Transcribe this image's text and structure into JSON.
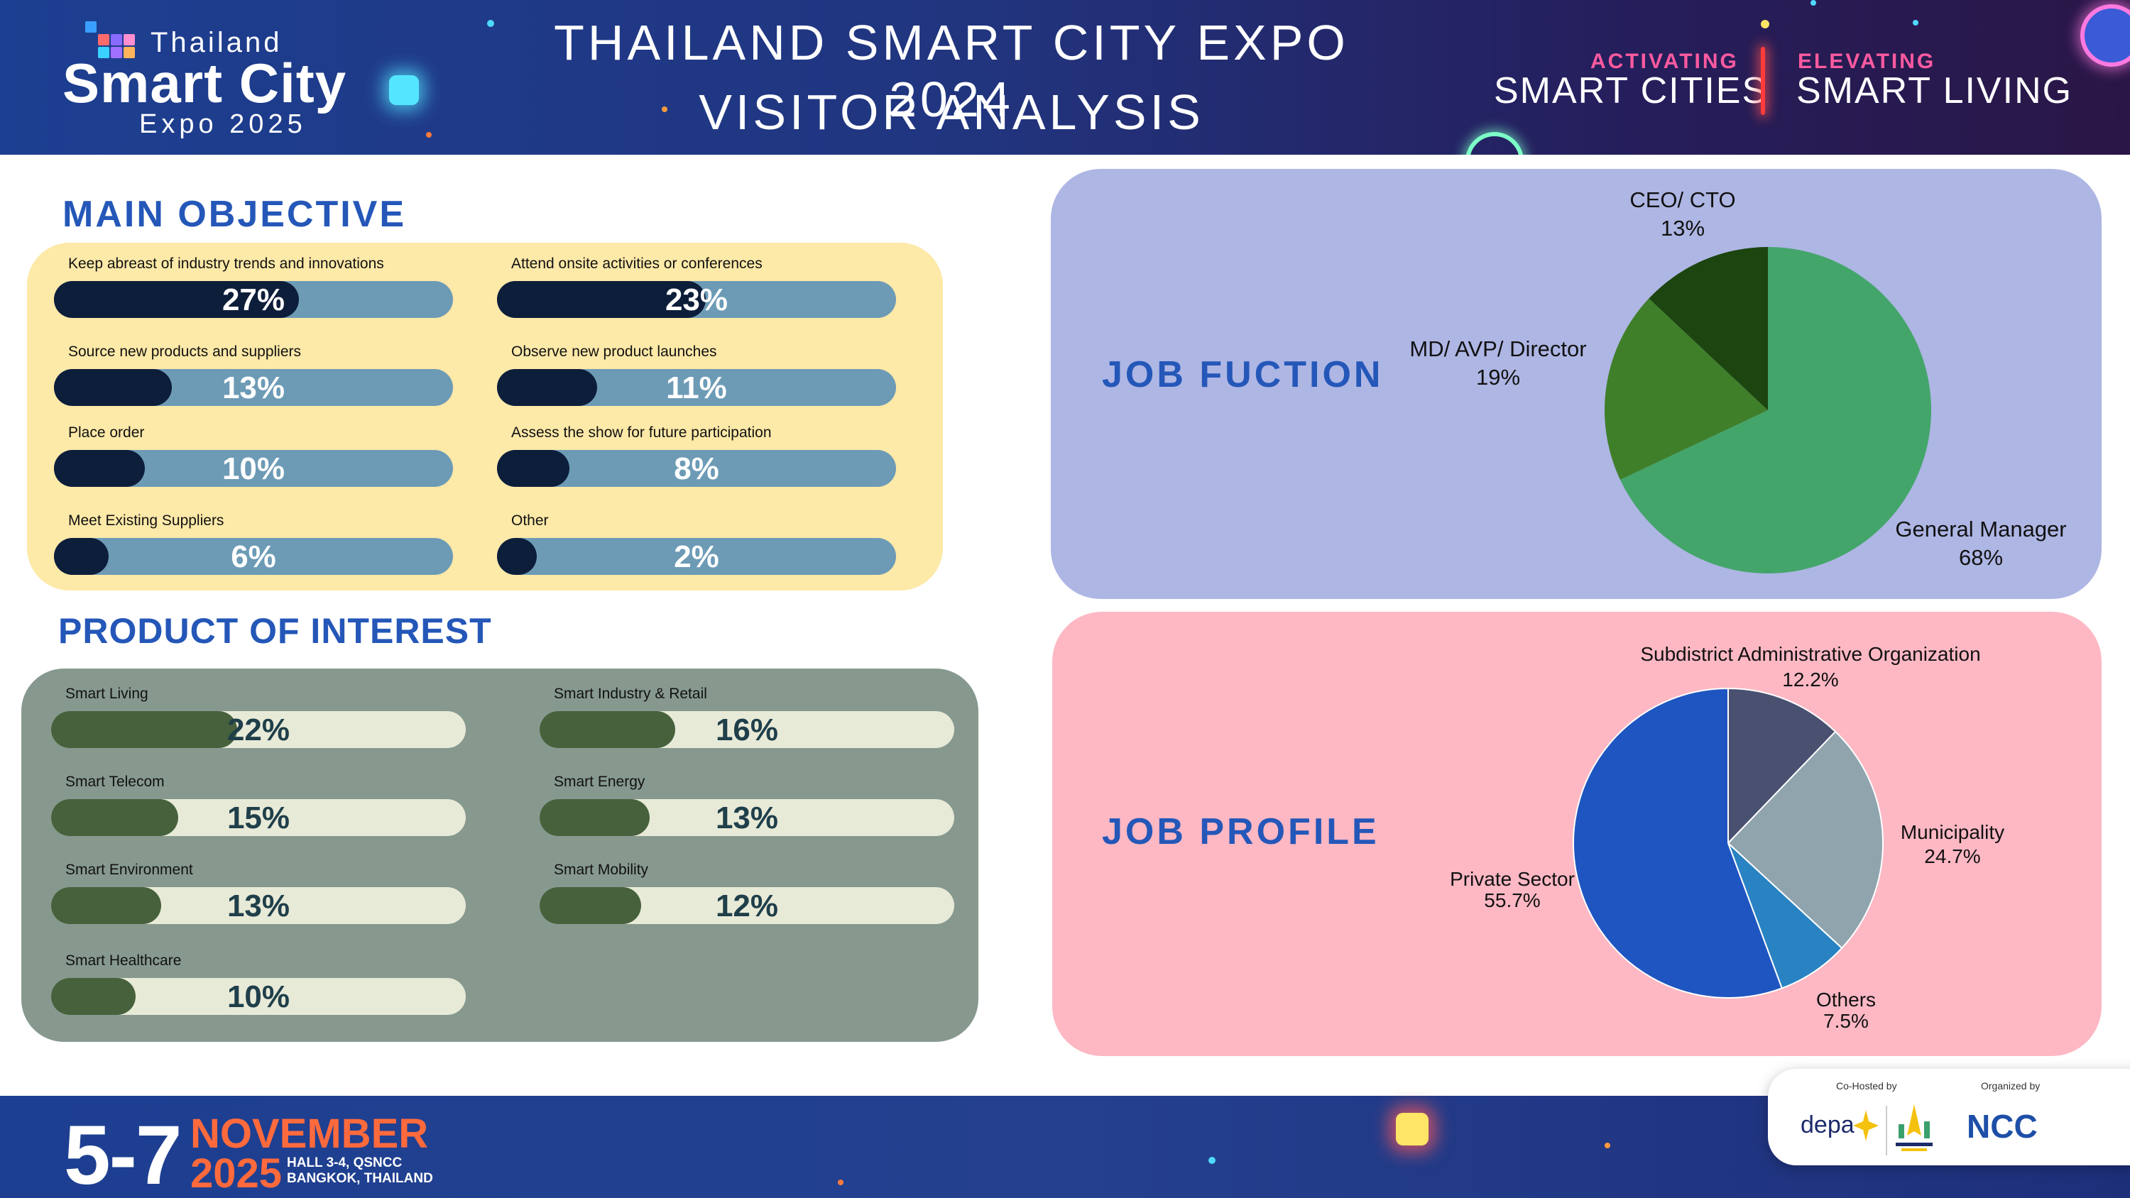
{
  "header": {
    "logo": {
      "line1": "Thailand",
      "line2": "Smart City",
      "line3": "Expo 2025"
    },
    "title_line1": "THAILAND SMART CITY EXPO 2024",
    "title_line2": "VISITOR ANALYSIS",
    "tagline": {
      "left_top": "ACTIVATING",
      "left_bottom": "SMART CITIES",
      "right_top": "ELEVATING",
      "right_bottom": "SMART LIVING"
    },
    "home_icon": "home-icon"
  },
  "main_objective": {
    "title": "MAIN OBJECTIVE",
    "items": [
      {
        "label": "Keep abreast of industry trends and innovations",
        "value": 27,
        "display": "27%"
      },
      {
        "label": "Attend onsite activities or conferences",
        "value": 23,
        "display": "23%"
      },
      {
        "label": "Source new products and suppliers",
        "value": 13,
        "display": "13%"
      },
      {
        "label": "Observe new product launches",
        "value": 11,
        "display": "11%"
      },
      {
        "label": "Place order",
        "value": 10,
        "display": "10%"
      },
      {
        "label": "Assess the show for future participation",
        "value": 8,
        "display": "8%"
      },
      {
        "label": "Meet Existing Suppliers",
        "value": 6,
        "display": "6%"
      },
      {
        "label": "Other",
        "value": 2,
        "display": "2%"
      }
    ],
    "colors": {
      "panel": "#fde9a8",
      "track": "#6d9bb6",
      "fill": "#0d1e3a",
      "text": "#ffffff"
    }
  },
  "product_of_interest": {
    "title": "PRODUCT OF INTEREST",
    "items": [
      {
        "label": "Smart Living",
        "value": 22,
        "display": "22%"
      },
      {
        "label": "Smart Industry & Retail",
        "value": 16,
        "display": "16%"
      },
      {
        "label": "Smart Telecom",
        "value": 15,
        "display": "15%"
      },
      {
        "label": "Smart Energy",
        "value": 13,
        "display": "13%"
      },
      {
        "label": "Smart Environment",
        "value": 13,
        "display": "13%"
      },
      {
        "label": "Smart Mobility",
        "value": 12,
        "display": "12%"
      },
      {
        "label": "Smart Healthcare",
        "value": 10,
        "display": "10%"
      }
    ],
    "colors": {
      "panel": "#87998f",
      "track": "#e8ead8",
      "fill": "#46613b",
      "text": "#1f3f4a"
    }
  },
  "chart_data": [
    {
      "type": "pie",
      "title": "JOB FUCTION",
      "labels": [
        "General Manager",
        "MD/ AVP/ Director",
        "CEO/ CTO"
      ],
      "values": [
        68,
        19,
        13
      ],
      "value_labels": [
        "68%",
        "19%",
        "13%"
      ],
      "colors": [
        "#44a56b",
        "#3f7f2a",
        "#1c4510"
      ]
    },
    {
      "type": "pie",
      "title": "JOB PROFILE",
      "labels": [
        "Subdistrict Administrative Organization",
        "Municipality",
        "Others",
        "Private Sector"
      ],
      "values": [
        12.2,
        24.7,
        7.5,
        55.7
      ],
      "value_labels": [
        "12.2%",
        "24.7%",
        "7.5%",
        "55.7%"
      ],
      "colors": [
        "#4a5070",
        "#90a4ae",
        "#2983c2",
        "#1f55c0"
      ]
    }
  ],
  "footer": {
    "date": "5-7",
    "month": "NOVEMBER",
    "year": "2025",
    "venue_line1": "HALL 3-4, QSNCC",
    "venue_line2": "BANGKOK, THAILAND",
    "sponsors": {
      "cohosted_label": "Co-Hosted by",
      "organized_label": "Organized by",
      "depa": "depa",
      "ncc": "NCC"
    }
  }
}
